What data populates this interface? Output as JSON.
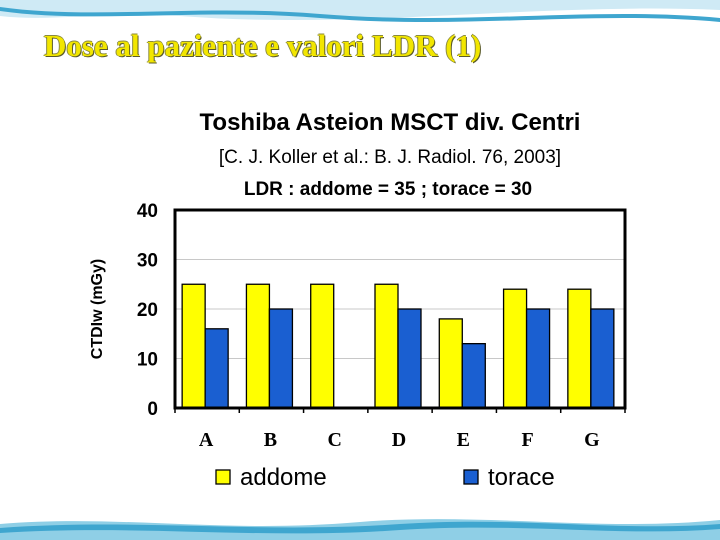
{
  "slide": {
    "title": "Dose al paziente e valori LDR (1)"
  },
  "colors": {
    "wave_light": "#cfeaf5",
    "wave_mid": "#8fcfe6",
    "wave_dark": "#3fa6cf",
    "addome": "#ffff00",
    "torace": "#1a5fd1",
    "title": "#f2e600"
  },
  "chart_data": {
    "type": "bar",
    "title": "Toshiba Asteion MSCT div. Centri",
    "subtitle": "[C. J. Koller et al.: B. J. Radiol. 76, 2003]",
    "annotation": "LDR : addome = 35 ; torace = 30",
    "xlabel": "",
    "ylabel": "CTDIw (mGy)",
    "ylim": [
      0,
      40
    ],
    "yticks": [
      0,
      10,
      20,
      30,
      40
    ],
    "grid": true,
    "legend_position": "bottom",
    "categories": [
      "A",
      "B",
      "C",
      "D",
      "E",
      "F",
      "G"
    ],
    "series": [
      {
        "name": "addome",
        "values": [
          25,
          25,
          25,
          25,
          18,
          24,
          24
        ]
      },
      {
        "name": "torace",
        "values": [
          16,
          20,
          null,
          20,
          13,
          20,
          20
        ]
      }
    ]
  }
}
